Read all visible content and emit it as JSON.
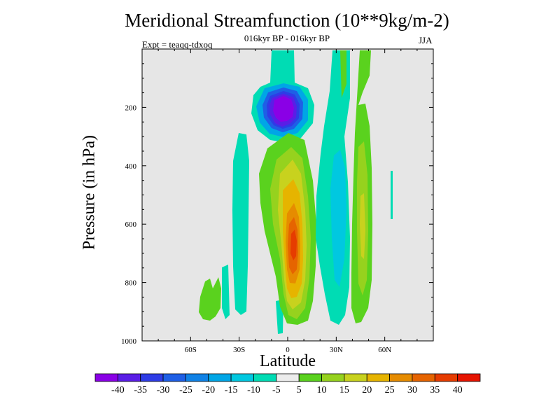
{
  "chart_data": {
    "type": "contour",
    "title": "Meridional Streamfunction (10**9kg/m-2)",
    "subtitle": "016kyr BP - 016kyr BP",
    "experiment": "Expt = teaqq-tdxoq",
    "season": "JJA",
    "xlabel": "Latitude",
    "ylabel": "Pressure (in hPa)",
    "xlim": [
      -90,
      90
    ],
    "ylim": [
      1000,
      0
    ],
    "x_ticks": [
      {
        "value": -60,
        "label": "60S"
      },
      {
        "value": -30,
        "label": "30S"
      },
      {
        "value": 0,
        "label": "0"
      },
      {
        "value": 30,
        "label": "30N"
      },
      {
        "value": 60,
        "label": "60N"
      }
    ],
    "y_ticks": [
      {
        "value": 200,
        "label": "200"
      },
      {
        "value": 400,
        "label": "400"
      },
      {
        "value": 600,
        "label": "600"
      },
      {
        "value": 800,
        "label": "800"
      },
      {
        "value": 1000,
        "label": "1000"
      }
    ],
    "background_color": "#e6e6e6",
    "colorbar": {
      "labels": [
        "-40",
        "-35",
        "-30",
        "-25",
        "-20",
        "-15",
        "-10",
        "-5",
        "5",
        "10",
        "15",
        "20",
        "25",
        "30",
        "35",
        "40"
      ],
      "colors": [
        "#8a00e6",
        "#5a1ee6",
        "#2e3ce6",
        "#1e5fe6",
        "#1082e6",
        "#00a6e6",
        "#00c8e0",
        "#00dcb4",
        "#ececec",
        "#5ad21e",
        "#96d21e",
        "#c8d21e",
        "#e6b400",
        "#e68c00",
        "#e66400",
        "#e63c00",
        "#e61400"
      ]
    },
    "features": [
      {
        "name": "upper-negative-cell",
        "sign": "negative",
        "lat_range": [
          -15,
          10
        ],
        "pressure_range": [
          60,
          300
        ],
        "min_value": -40
      },
      {
        "name": "ascending-branch-positive-cell",
        "sign": "positive",
        "lat_range": [
          -15,
          12
        ],
        "pressure_range": [
          260,
          900
        ],
        "max_value": 35,
        "center_lat": 5,
        "center_pressure": 660
      },
      {
        "name": "nh-negative-band",
        "sign": "negative",
        "lat_range": [
          15,
          40
        ],
        "pressure_range": [
          0,
          950
        ],
        "min_value": -10
      },
      {
        "name": "nh-positive-band",
        "sign": "positive",
        "lat_range": [
          42,
          55
        ],
        "pressure_range": [
          0,
          950
        ],
        "max_value": 15
      },
      {
        "name": "sh-negative-band",
        "sign": "negative",
        "lat_range": [
          -35,
          -23
        ],
        "pressure_range": [
          290,
          870
        ],
        "min_value": -5
      },
      {
        "name": "sh-lower-positive-patch",
        "sign": "positive",
        "lat_range": [
          -55,
          -45
        ],
        "pressure_range": [
          790,
          940
        ],
        "max_value": 10
      }
    ]
  }
}
